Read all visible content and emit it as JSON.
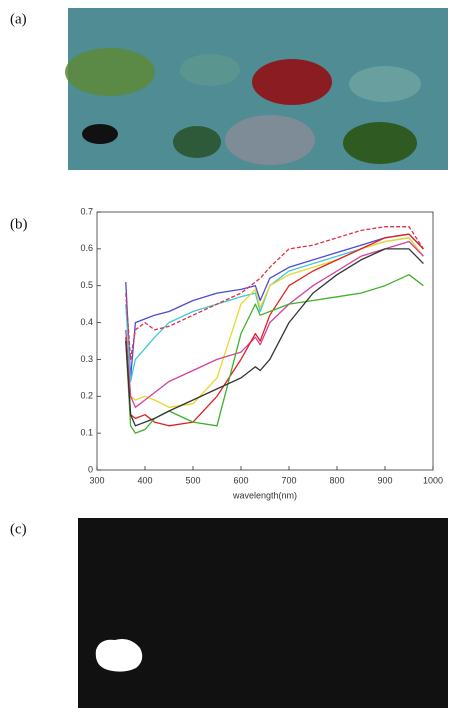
{
  "panels": [
    "(a)",
    "(b)",
    "(c)"
  ],
  "chart_data": {
    "type": "line",
    "x_label": "wavelength(nm)",
    "x": [
      360,
      370,
      380,
      400,
      420,
      450,
      500,
      550,
      600,
      630,
      640,
      660,
      700,
      750,
      800,
      850,
      900,
      950,
      980
    ],
    "xlim": [
      300,
      1000
    ],
    "xticks": [
      300,
      400,
      500,
      600,
      700,
      800,
      900,
      1000
    ],
    "ylim": [
      0,
      0.7
    ],
    "yticks": [
      0,
      0.1,
      0.2,
      0.3,
      0.4,
      0.5,
      0.6,
      0.7
    ],
    "series": [
      {
        "color": "#4b4bd6",
        "values": [
          0.51,
          0.25,
          0.4,
          0.41,
          0.42,
          0.43,
          0.46,
          0.48,
          0.49,
          0.5,
          0.46,
          0.52,
          0.55,
          0.57,
          0.59,
          0.61,
          0.63,
          0.64,
          0.6
        ]
      },
      {
        "color": "#3fc9d6",
        "values": [
          0.45,
          0.24,
          0.3,
          0.33,
          0.36,
          0.4,
          0.43,
          0.45,
          0.47,
          0.48,
          0.43,
          0.5,
          0.54,
          0.56,
          0.58,
          0.6,
          0.62,
          0.63,
          0.58
        ]
      },
      {
        "color": "#e0304a",
        "style": "dashed",
        "values": [
          0.48,
          0.3,
          0.38,
          0.4,
          0.38,
          0.39,
          0.42,
          0.45,
          0.48,
          0.51,
          0.52,
          0.55,
          0.6,
          0.61,
          0.63,
          0.65,
          0.66,
          0.66,
          0.6
        ]
      },
      {
        "color": "#e8d82a",
        "values": [
          0.38,
          0.2,
          0.19,
          0.2,
          0.19,
          0.17,
          0.18,
          0.25,
          0.45,
          0.49,
          0.44,
          0.5,
          0.53,
          0.55,
          0.57,
          0.6,
          0.62,
          0.63,
          0.58
        ]
      },
      {
        "color": "#d63fa0",
        "values": [
          0.38,
          0.2,
          0.17,
          0.19,
          0.21,
          0.24,
          0.27,
          0.3,
          0.32,
          0.36,
          0.34,
          0.4,
          0.45,
          0.5,
          0.54,
          0.58,
          0.6,
          0.62,
          0.58
        ]
      },
      {
        "color": "#e02020",
        "values": [
          0.36,
          0.15,
          0.14,
          0.15,
          0.13,
          0.12,
          0.13,
          0.2,
          0.3,
          0.37,
          0.35,
          0.42,
          0.5,
          0.54,
          0.57,
          0.6,
          0.63,
          0.64,
          0.6
        ]
      },
      {
        "color": "#3fb02a",
        "values": [
          0.35,
          0.12,
          0.1,
          0.11,
          0.14,
          0.16,
          0.13,
          0.12,
          0.37,
          0.45,
          0.42,
          0.43,
          0.45,
          0.46,
          0.47,
          0.48,
          0.5,
          0.53,
          0.5
        ]
      },
      {
        "color": "#333333",
        "values": [
          0.35,
          0.15,
          0.12,
          0.13,
          0.14,
          0.16,
          0.19,
          0.22,
          0.25,
          0.28,
          0.27,
          0.3,
          0.4,
          0.48,
          0.53,
          0.57,
          0.6,
          0.6,
          0.56
        ]
      }
    ]
  }
}
